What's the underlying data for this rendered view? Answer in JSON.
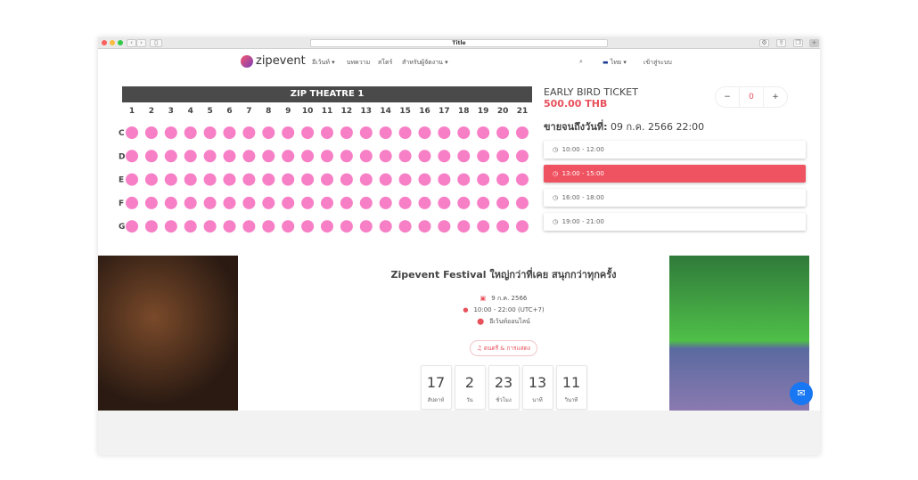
{
  "browser": {
    "title": "Title"
  },
  "nav": {
    "brand": "zipevent",
    "items": [
      "อีเว้นท์ ▾",
      "บทความ",
      "สโตร์",
      "สำหรับผู้จัดงาน ▾"
    ],
    "language": "ไทย ▾",
    "login": "เข้าสู่ระบบ"
  },
  "seatmap": {
    "stage": "ZIP THEATRE 1",
    "columns": [
      "1",
      "2",
      "3",
      "4",
      "5",
      "6",
      "7",
      "8",
      "9",
      "10",
      "11",
      "12",
      "13",
      "14",
      "15",
      "16",
      "17",
      "18",
      "19",
      "20",
      "21"
    ],
    "rows": [
      "C",
      "D",
      "E",
      "F",
      "G"
    ],
    "seat_color": "#f77fc6"
  },
  "ticket": {
    "name": "EARLY BIRD TICKET",
    "price": "500.00 THB",
    "quantity": "0",
    "minus": "−",
    "plus": "+",
    "sale_label": "ขายจนถึงวันที่:",
    "sale_date": "09 ก.ค. 2566 22:00",
    "slots": [
      {
        "time": "10:00 - 12:00",
        "selected": false
      },
      {
        "time": "13:00 - 15:00",
        "selected": true
      },
      {
        "time": "16:00 - 18:00",
        "selected": false
      },
      {
        "time": "19:00 - 21:00",
        "selected": false
      }
    ],
    "accent": "#ef5260"
  },
  "event": {
    "title": "Zipevent Festival ใหญ่กว่าที่เคย สนุกกว่าทุกครั้ง",
    "date": "9 ก.ค. 2566",
    "time": "10:00 - 22:00 (UTC+7)",
    "location": "อีเว้นท์ออนไลน์",
    "category": "ดนตรี & การแสดง",
    "countdown": [
      {
        "value": "17",
        "unit": "สัปดาห์"
      },
      {
        "value": "2",
        "unit": "วัน"
      },
      {
        "value": "23",
        "unit": "ชั่วโมง"
      },
      {
        "value": "13",
        "unit": "นาที"
      },
      {
        "value": "11",
        "unit": "วินาที"
      }
    ]
  }
}
